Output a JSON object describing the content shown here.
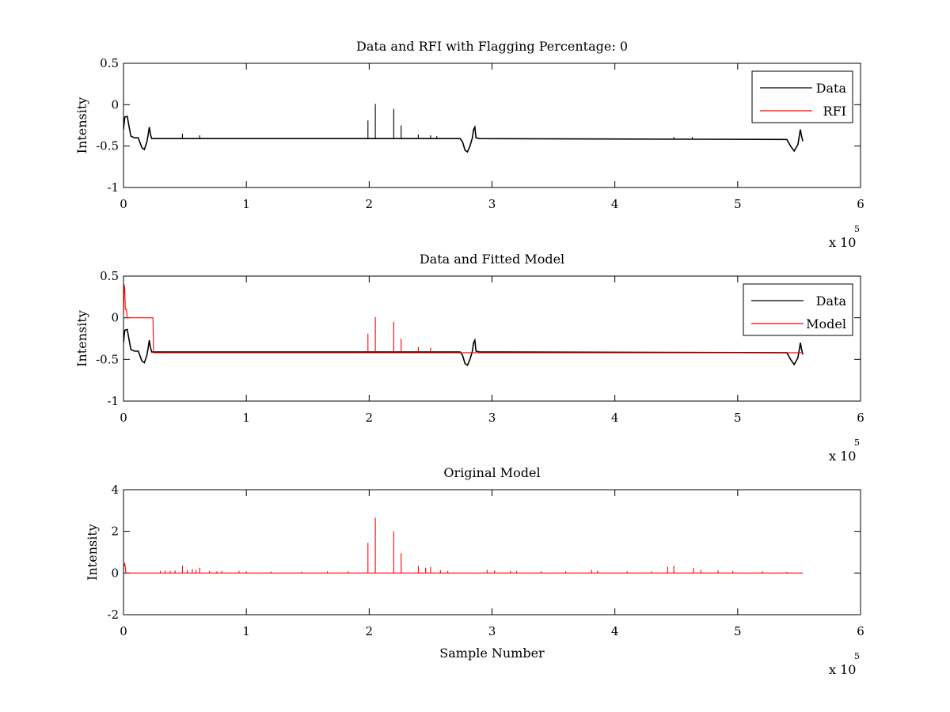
{
  "figure": {
    "background": "#ffffff",
    "colors": {
      "data": "#000000",
      "rfi": "#ff0000",
      "model": "#ff0000"
    }
  },
  "chart_data": [
    {
      "type": "line",
      "title": "Data and RFI with Flagging Percentage: 0",
      "xlabel": "",
      "ylabel": "Intensity",
      "xlim": [
        0,
        600000
      ],
      "ylim": [
        -1,
        0.5
      ],
      "xticks": [
        0,
        1,
        2,
        3,
        4,
        5,
        6
      ],
      "xticklabels": [
        "0",
        "1",
        "2",
        "3",
        "4",
        "5",
        "6"
      ],
      "x_multiplier": "x 10",
      "x_multiplier_exp": "5",
      "yticks": [
        -1,
        -0.5,
        0,
        0.5
      ],
      "yticklabels": [
        "-1",
        "-0.5",
        "0",
        "0.5"
      ],
      "legend": {
        "placement": "top-right",
        "entries": [
          {
            "label": "Data",
            "color": "#000000"
          },
          {
            "label": "RFI",
            "color": "#ff0000"
          }
        ]
      },
      "series": [
        {
          "name": "Data",
          "color": "#000000",
          "baseline": -0.41,
          "x": [
            0,
            1000,
            3000,
            6000,
            9000,
            12000,
            15000,
            17000,
            19000,
            20000,
            21000,
            22000,
            23000,
            30000,
            274000,
            276000,
            278000,
            280000,
            282000,
            284000,
            285000,
            286000,
            287000,
            290000,
            540000,
            543000,
            546000,
            549000,
            551000,
            552000,
            553000
          ],
          "y": [
            -0.3,
            -0.15,
            -0.14,
            -0.38,
            -0.4,
            -0.4,
            -0.52,
            -0.54,
            -0.45,
            -0.37,
            -0.27,
            -0.36,
            -0.41,
            -0.41,
            -0.41,
            -0.45,
            -0.55,
            -0.57,
            -0.5,
            -0.4,
            -0.3,
            -0.27,
            -0.4,
            -0.41,
            -0.42,
            -0.5,
            -0.56,
            -0.48,
            -0.3,
            -0.38,
            -0.44
          ],
          "spikes": [
            {
              "x": 199000,
              "y": -0.19
            },
            {
              "x": 205000,
              "y": 0.01
            },
            {
              "x": 220000,
              "y": -0.05
            },
            {
              "x": 226000,
              "y": -0.25
            },
            {
              "x": 48000,
              "y": -0.35
            },
            {
              "x": 62000,
              "y": -0.37
            },
            {
              "x": 240000,
              "y": -0.36
            },
            {
              "x": 250000,
              "y": -0.37
            },
            {
              "x": 255000,
              "y": -0.38
            },
            {
              "x": 448000,
              "y": -0.39
            },
            {
              "x": 463000,
              "y": -0.39
            }
          ]
        },
        {
          "name": "RFI",
          "color": "#ff0000",
          "x": [],
          "y": []
        }
      ]
    },
    {
      "type": "line",
      "title": "Data and Fitted Model",
      "xlabel": "",
      "ylabel": "Intensity",
      "xlim": [
        0,
        600000
      ],
      "ylim": [
        -1,
        0.5
      ],
      "xticks": [
        0,
        1,
        2,
        3,
        4,
        5,
        6
      ],
      "xticklabels": [
        "0",
        "1",
        "2",
        "3",
        "4",
        "5",
        "6"
      ],
      "x_multiplier": "x 10",
      "x_multiplier_exp": "5",
      "yticks": [
        -1,
        -0.5,
        0,
        0.5
      ],
      "yticklabels": [
        "-1",
        "-0.5",
        "0",
        "0.5"
      ],
      "legend": {
        "placement": "top-right",
        "entries": [
          {
            "label": "Data",
            "color": "#000000"
          },
          {
            "label": "Model",
            "color": "#ff0000"
          }
        ]
      },
      "series": [
        {
          "name": "Data",
          "color": "#000000",
          "x": [
            0,
            1000,
            3000,
            6000,
            9000,
            12000,
            15000,
            17000,
            19000,
            20000,
            21000,
            22000,
            23000,
            30000,
            274000,
            276000,
            278000,
            280000,
            282000,
            284000,
            285000,
            286000,
            287000,
            290000,
            540000,
            543000,
            546000,
            549000,
            551000,
            552000,
            553000
          ],
          "y": [
            -0.3,
            -0.15,
            -0.14,
            -0.38,
            -0.4,
            -0.4,
            -0.52,
            -0.54,
            -0.45,
            -0.37,
            -0.27,
            -0.36,
            -0.41,
            -0.41,
            -0.41,
            -0.45,
            -0.55,
            -0.57,
            -0.5,
            -0.4,
            -0.3,
            -0.27,
            -0.4,
            -0.41,
            -0.42,
            -0.5,
            -0.56,
            -0.48,
            -0.3,
            -0.38,
            -0.44
          ]
        },
        {
          "name": "Model",
          "color": "#ff0000",
          "x": [
            0,
            500,
            1000,
            1500,
            2500,
            3000,
            24000,
            24500,
            553000
          ],
          "y": [
            0,
            0.4,
            0.35,
            0.1,
            0.1,
            0,
            0,
            -0.42,
            -0.42
          ],
          "spikes": [
            {
              "x": 199000,
              "y": -0.19
            },
            {
              "x": 205000,
              "y": 0.01
            },
            {
              "x": 220000,
              "y": -0.05
            },
            {
              "x": 226000,
              "y": -0.25
            },
            {
              "x": 240000,
              "y": -0.35
            },
            {
              "x": 250000,
              "y": -0.36
            }
          ]
        }
      ]
    },
    {
      "type": "line",
      "title": "Original Model",
      "xlabel": "Sample Number",
      "ylabel": "Intensity",
      "xlim": [
        0,
        600000
      ],
      "ylim": [
        -2,
        4
      ],
      "xticks": [
        0,
        1,
        2,
        3,
        4,
        5,
        6
      ],
      "xticklabels": [
        "0",
        "1",
        "2",
        "3",
        "4",
        "5",
        "6"
      ],
      "x_multiplier": "x 10",
      "x_multiplier_exp": "5",
      "yticks": [
        -2,
        0,
        2,
        4
      ],
      "yticklabels": [
        "-2",
        "0",
        "2",
        "4"
      ],
      "series": [
        {
          "name": "",
          "color": "#ff0000",
          "x": [
            0,
            1000,
            2000,
            553000
          ],
          "y": [
            0.3,
            0.45,
            0,
            0
          ],
          "spikes": [
            {
              "x": 30000,
              "y": 0.1
            },
            {
              "x": 34000,
              "y": 0.12
            },
            {
              "x": 38000,
              "y": 0.1
            },
            {
              "x": 42000,
              "y": 0.12
            },
            {
              "x": 48000,
              "y": 0.35
            },
            {
              "x": 52000,
              "y": 0.15
            },
            {
              "x": 56000,
              "y": 0.2
            },
            {
              "x": 59000,
              "y": 0.15
            },
            {
              "x": 62000,
              "y": 0.25
            },
            {
              "x": 70000,
              "y": 0.1
            },
            {
              "x": 76000,
              "y": 0.08
            },
            {
              "x": 80000,
              "y": 0.1
            },
            {
              "x": 94000,
              "y": 0.1
            },
            {
              "x": 100000,
              "y": 0.08
            },
            {
              "x": 120000,
              "y": 0.07
            },
            {
              "x": 145000,
              "y": 0.06
            },
            {
              "x": 166000,
              "y": 0.08
            },
            {
              "x": 183000,
              "y": 0.08
            },
            {
              "x": 199000,
              "y": 1.45
            },
            {
              "x": 205000,
              "y": 2.65
            },
            {
              "x": 220000,
              "y": 2.0
            },
            {
              "x": 226000,
              "y": 0.95
            },
            {
              "x": 240000,
              "y": 0.35
            },
            {
              "x": 246000,
              "y": 0.25
            },
            {
              "x": 250000,
              "y": 0.3
            },
            {
              "x": 258000,
              "y": 0.15
            },
            {
              "x": 264000,
              "y": 0.1
            },
            {
              "x": 296000,
              "y": 0.15
            },
            {
              "x": 302000,
              "y": 0.12
            },
            {
              "x": 315000,
              "y": 0.1
            },
            {
              "x": 320000,
              "y": 0.1
            },
            {
              "x": 340000,
              "y": 0.08
            },
            {
              "x": 360000,
              "y": 0.08
            },
            {
              "x": 381000,
              "y": 0.15
            },
            {
              "x": 386000,
              "y": 0.12
            },
            {
              "x": 410000,
              "y": 0.08
            },
            {
              "x": 430000,
              "y": 0.08
            },
            {
              "x": 443000,
              "y": 0.3
            },
            {
              "x": 448000,
              "y": 0.35
            },
            {
              "x": 464000,
              "y": 0.25
            },
            {
              "x": 470000,
              "y": 0.15
            },
            {
              "x": 484000,
              "y": 0.12
            },
            {
              "x": 496000,
              "y": 0.1
            },
            {
              "x": 520000,
              "y": 0.08
            },
            {
              "x": 540000,
              "y": 0.05
            }
          ]
        }
      ]
    }
  ]
}
